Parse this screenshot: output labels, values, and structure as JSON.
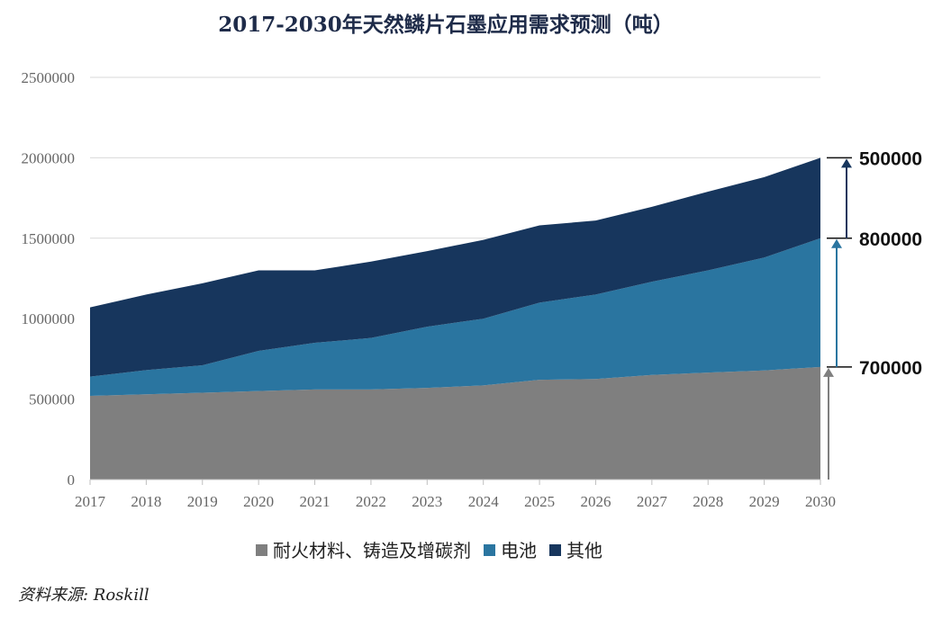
{
  "chart_data": {
    "type": "area",
    "stacked": true,
    "title": "2017-2030年天然鳞片石墨应用需求预测（吨）",
    "x": [
      "2017",
      "2018",
      "2019",
      "2020",
      "2021",
      "2022",
      "2023",
      "2024",
      "2025",
      "2026",
      "2027",
      "2028",
      "2029",
      "2030"
    ],
    "series": [
      {
        "name": "耐火材料、铸造及增碳剂",
        "color": "#7f7f7f",
        "values": [
          520000,
          530000,
          540000,
          550000,
          560000,
          560000,
          570000,
          585000,
          620000,
          625000,
          650000,
          665000,
          678000,
          700000
        ]
      },
      {
        "name": "电池",
        "color": "#2a75a0",
        "values": [
          120000,
          150000,
          170000,
          250000,
          290000,
          320000,
          380000,
          415000,
          480000,
          525000,
          580000,
          635000,
          702000,
          800000
        ]
      },
      {
        "name": "其他",
        "color": "#17365d",
        "values": [
          430000,
          470000,
          510000,
          500000,
          450000,
          475000,
          470000,
          490000,
          480000,
          460000,
          465000,
          490000,
          500000,
          500000
        ]
      }
    ],
    "ylim": [
      0,
      2500000
    ],
    "yticks": [
      "0",
      "500000",
      "1000000",
      "1500000",
      "2000000",
      "2500000"
    ],
    "grid": true,
    "legend_position": "bottom",
    "annotations": [
      {
        "label": "500000",
        "series": "其他",
        "color": "#17365d"
      },
      {
        "label": "800000",
        "series": "电池",
        "color": "#2a75a0"
      },
      {
        "label": "700000",
        "series": "耐火材料、铸造及增碳剂",
        "color": "#7f7f7f"
      }
    ]
  },
  "source": "资料来源: Roskill"
}
